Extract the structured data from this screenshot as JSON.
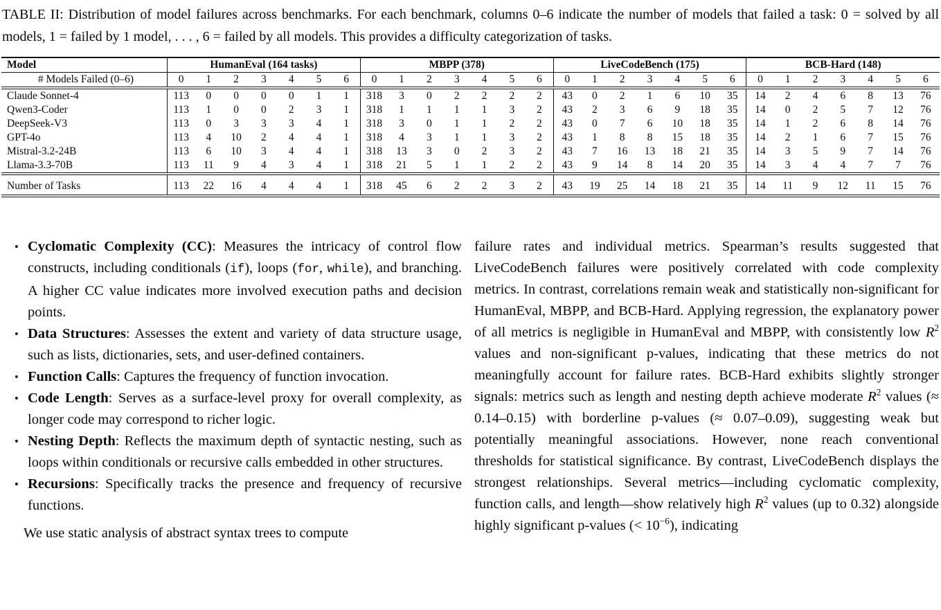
{
  "caption": "TABLE II: Distribution of model failures across benchmarks. For each benchmark, columns 0–6 indicate the number of models that failed a task: 0 = solved by all models, 1 = failed by 1 model, . . . , 6 = failed by all models. This provides a difficulty categorization of tasks.",
  "table": {
    "model_header": "Model",
    "groups": [
      {
        "label": "HumanEval (164 tasks)"
      },
      {
        "label": "MBPP (378)"
      },
      {
        "label": "LiveCodeBench (175)"
      },
      {
        "label": "BCB-Hard (148)"
      }
    ],
    "subheader_label": "# Models Failed (0–6)",
    "subheader_cols": [
      "0",
      "1",
      "2",
      "3",
      "4",
      "5",
      "6"
    ],
    "rows": [
      {
        "model": "Claude Sonnet-4",
        "humaneval": [
          113,
          0,
          0,
          0,
          0,
          1,
          1
        ],
        "mbpp": [
          318,
          3,
          0,
          2,
          2,
          2,
          2
        ],
        "livecodebench": [
          43,
          0,
          2,
          1,
          6,
          10,
          35
        ],
        "bcb_hard": [
          14,
          2,
          4,
          6,
          8,
          13,
          76
        ]
      },
      {
        "model": "Qwen3-Coder",
        "humaneval": [
          113,
          1,
          0,
          0,
          2,
          3,
          1
        ],
        "mbpp": [
          318,
          1,
          1,
          1,
          1,
          3,
          2
        ],
        "livecodebench": [
          43,
          2,
          3,
          6,
          9,
          18,
          35
        ],
        "bcb_hard": [
          14,
          0,
          2,
          5,
          7,
          12,
          76
        ]
      },
      {
        "model": "DeepSeek-V3",
        "humaneval": [
          113,
          0,
          3,
          3,
          3,
          4,
          1
        ],
        "mbpp": [
          318,
          3,
          0,
          1,
          1,
          2,
          2
        ],
        "livecodebench": [
          43,
          0,
          7,
          6,
          10,
          18,
          35
        ],
        "bcb_hard": [
          14,
          1,
          2,
          6,
          8,
          14,
          76
        ]
      },
      {
        "model": "GPT-4o",
        "humaneval": [
          113,
          4,
          10,
          2,
          4,
          4,
          1
        ],
        "mbpp": [
          318,
          4,
          3,
          1,
          1,
          3,
          2
        ],
        "livecodebench": [
          43,
          1,
          8,
          8,
          15,
          18,
          35
        ],
        "bcb_hard": [
          14,
          2,
          1,
          6,
          7,
          15,
          76
        ]
      },
      {
        "model": "Mistral-3.2-24B",
        "humaneval": [
          113,
          6,
          10,
          3,
          4,
          4,
          1
        ],
        "mbpp": [
          318,
          13,
          3,
          0,
          2,
          3,
          2
        ],
        "livecodebench": [
          43,
          7,
          16,
          13,
          18,
          21,
          35
        ],
        "bcb_hard": [
          14,
          3,
          5,
          9,
          7,
          14,
          76
        ]
      },
      {
        "model": "Llama-3.3-70B",
        "humaneval": [
          113,
          11,
          9,
          4,
          3,
          4,
          1
        ],
        "mbpp": [
          318,
          21,
          5,
          1,
          1,
          2,
          2
        ],
        "livecodebench": [
          43,
          9,
          14,
          8,
          14,
          20,
          35
        ],
        "bcb_hard": [
          14,
          3,
          4,
          4,
          7,
          7,
          76
        ]
      }
    ],
    "footer": {
      "label": "Number of Tasks",
      "humaneval": [
        113,
        22,
        16,
        4,
        4,
        4,
        1
      ],
      "mbpp": [
        318,
        45,
        6,
        2,
        2,
        3,
        2
      ],
      "livecodebench": [
        43,
        19,
        25,
        14,
        18,
        21,
        35
      ],
      "bcb_hard": [
        14,
        11,
        9,
        12,
        11,
        15,
        76
      ]
    }
  },
  "left_column": {
    "bullets": [
      {
        "segments": [
          {
            "style": "bold",
            "text": "Cyclomatic Complexity (CC)"
          },
          {
            "style": "plain",
            "text": ": Measures the intricacy of control flow constructs, including conditionals ("
          },
          {
            "style": "code",
            "text": "if"
          },
          {
            "style": "plain",
            "text": "), loops ("
          },
          {
            "style": "code",
            "text": "for"
          },
          {
            "style": "plain",
            "text": ", "
          },
          {
            "style": "code",
            "text": "while"
          },
          {
            "style": "plain",
            "text": "), and branching. A higher CC value indicates more involved execution paths and decision points."
          }
        ]
      },
      {
        "segments": [
          {
            "style": "bold",
            "text": "Data Structures"
          },
          {
            "style": "plain",
            "text": ": Assesses the extent and variety of data structure usage, such as lists, dictionaries, sets, and user-defined containers."
          }
        ]
      },
      {
        "segments": [
          {
            "style": "bold",
            "text": "Function Calls"
          },
          {
            "style": "plain",
            "text": ": Captures the frequency of function invocation."
          }
        ]
      },
      {
        "segments": [
          {
            "style": "bold",
            "text": "Code Length"
          },
          {
            "style": "plain",
            "text": ": Serves as a surface-level proxy for overall complexity, as longer code may correspond to richer logic."
          }
        ]
      },
      {
        "segments": [
          {
            "style": "bold",
            "text": "Nesting Depth"
          },
          {
            "style": "plain",
            "text": ": Reflects the maximum depth of syntactic nesting, such as loops within conditionals or recursive calls embedded in other structures."
          }
        ]
      },
      {
        "segments": [
          {
            "style": "bold",
            "text": "Recursions"
          },
          {
            "style": "plain",
            "text": ": Specifically tracks the presence and frequency of recursive functions."
          }
        ]
      }
    ],
    "closing_line": "We use static analysis of abstract syntax trees to compute"
  },
  "right_column": {
    "segments": [
      {
        "style": "plain",
        "text": "failure rates and individual metrics. Spearman’s results suggested that LiveCodeBench failures were positively correlated with code complexity metrics. In contrast, correlations remain weak and statistically non-significant for HumanEval, MBPP, and BCB-Hard. Applying regression, the explanatory power of all metrics is negligible in HumanEval and MBPP, with consistently low "
      },
      {
        "style": "math",
        "text": "R"
      },
      {
        "style": "sup",
        "text": "2"
      },
      {
        "style": "plain",
        "text": " values and non-significant p-values, indicating that these metrics do not meaningfully account for failure rates. BCB-Hard exhibits slightly stronger signals: metrics such as length and nesting depth achieve moderate "
      },
      {
        "style": "math",
        "text": "R"
      },
      {
        "style": "sup",
        "text": "2"
      },
      {
        "style": "plain",
        "text": " values (≈ 0.14–0.15) with borderline p-values (≈ 0.07–0.09), suggesting weak but potentially meaningful associations. However, none reach conventional thresholds for statistical significance. By contrast, LiveCodeBench displays the strongest relationships. Several metrics—including cyclomatic complexity, function calls, and length—show relatively high "
      },
      {
        "style": "math",
        "text": "R"
      },
      {
        "style": "sup",
        "text": "2"
      },
      {
        "style": "plain",
        "text": " values (up to 0.32) alongside highly significant p-values (< 10"
      },
      {
        "style": "sup",
        "text": "−6"
      },
      {
        "style": "plain",
        "text": "), indicating"
      }
    ]
  }
}
